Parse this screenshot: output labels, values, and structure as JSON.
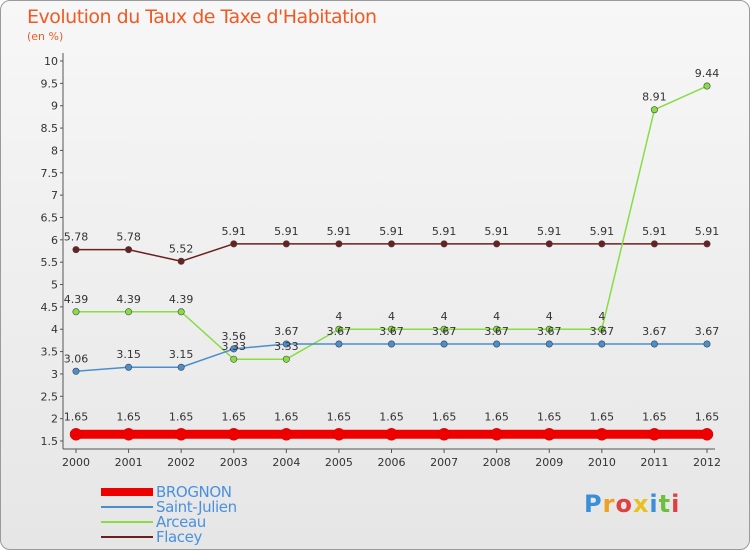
{
  "chart_data": {
    "type": "line",
    "title": "Evolution du Taux de Taxe d'Habitation",
    "unit_label": "(en %)",
    "x": [
      "2000",
      "2001",
      "2002",
      "2003",
      "2004",
      "2005",
      "2006",
      "2007",
      "2008",
      "2009",
      "2010",
      "2011",
      "2012"
    ],
    "ylim": [
      1.5,
      10
    ],
    "yticks": [
      "1.5",
      "2",
      "2.5",
      "3",
      "3.5",
      "4",
      "4.5",
      "5",
      "5.5",
      "6",
      "6.5",
      "7",
      "7.5",
      "8",
      "8.5",
      "9",
      "9.5",
      "10"
    ],
    "grid": false,
    "legend_position": "bottom-left",
    "series": [
      {
        "name": "BROGNON",
        "color": "#ee0000",
        "values": [
          1.65,
          1.65,
          1.65,
          1.65,
          1.65,
          1.65,
          1.65,
          1.65,
          1.65,
          1.65,
          1.65,
          1.65,
          1.65
        ],
        "labels": [
          "1.65",
          "1.65",
          "1.65",
          "1.65",
          "1.65",
          "1.65",
          "1.65",
          "1.65",
          "1.65",
          "1.65",
          "1.65",
          "1.65",
          "1.65"
        ]
      },
      {
        "name": "Saint-Julien",
        "color": "#4a8ed0",
        "values": [
          3.06,
          3.15,
          3.15,
          3.56,
          3.67,
          3.67,
          3.67,
          3.67,
          3.67,
          3.67,
          3.67,
          3.67,
          3.67
        ],
        "labels": [
          "3.06",
          "3.15",
          "3.15",
          "3.56",
          "3.67",
          "3.67",
          "3.67",
          "3.67",
          "3.67",
          "3.67",
          "3.67",
          "3.67",
          "3.67"
        ]
      },
      {
        "name": "Arceau",
        "color": "#88dd44",
        "values": [
          4.39,
          4.39,
          4.39,
          3.33,
          3.33,
          4,
          4,
          4,
          4,
          4,
          4,
          8.91,
          9.44
        ],
        "labels": [
          "4.39",
          "4.39",
          "4.39",
          "3.33",
          "3.33",
          "4",
          "4",
          "4",
          "4",
          "4",
          "4",
          "8.91",
          "9.44"
        ]
      },
      {
        "name": "Flacey",
        "color": "#6a2020",
        "values": [
          5.78,
          5.78,
          5.52,
          5.91,
          5.91,
          5.91,
          5.91,
          5.91,
          5.91,
          5.91,
          5.91,
          5.91,
          5.91
        ],
        "labels": [
          "5.78",
          "5.78",
          "5.52",
          "5.91",
          "5.91",
          "5.91",
          "5.91",
          "5.91",
          "5.91",
          "5.91",
          "5.91",
          "5.91",
          "5.91"
        ]
      }
    ]
  },
  "logo": {
    "text": "Proxiti"
  }
}
